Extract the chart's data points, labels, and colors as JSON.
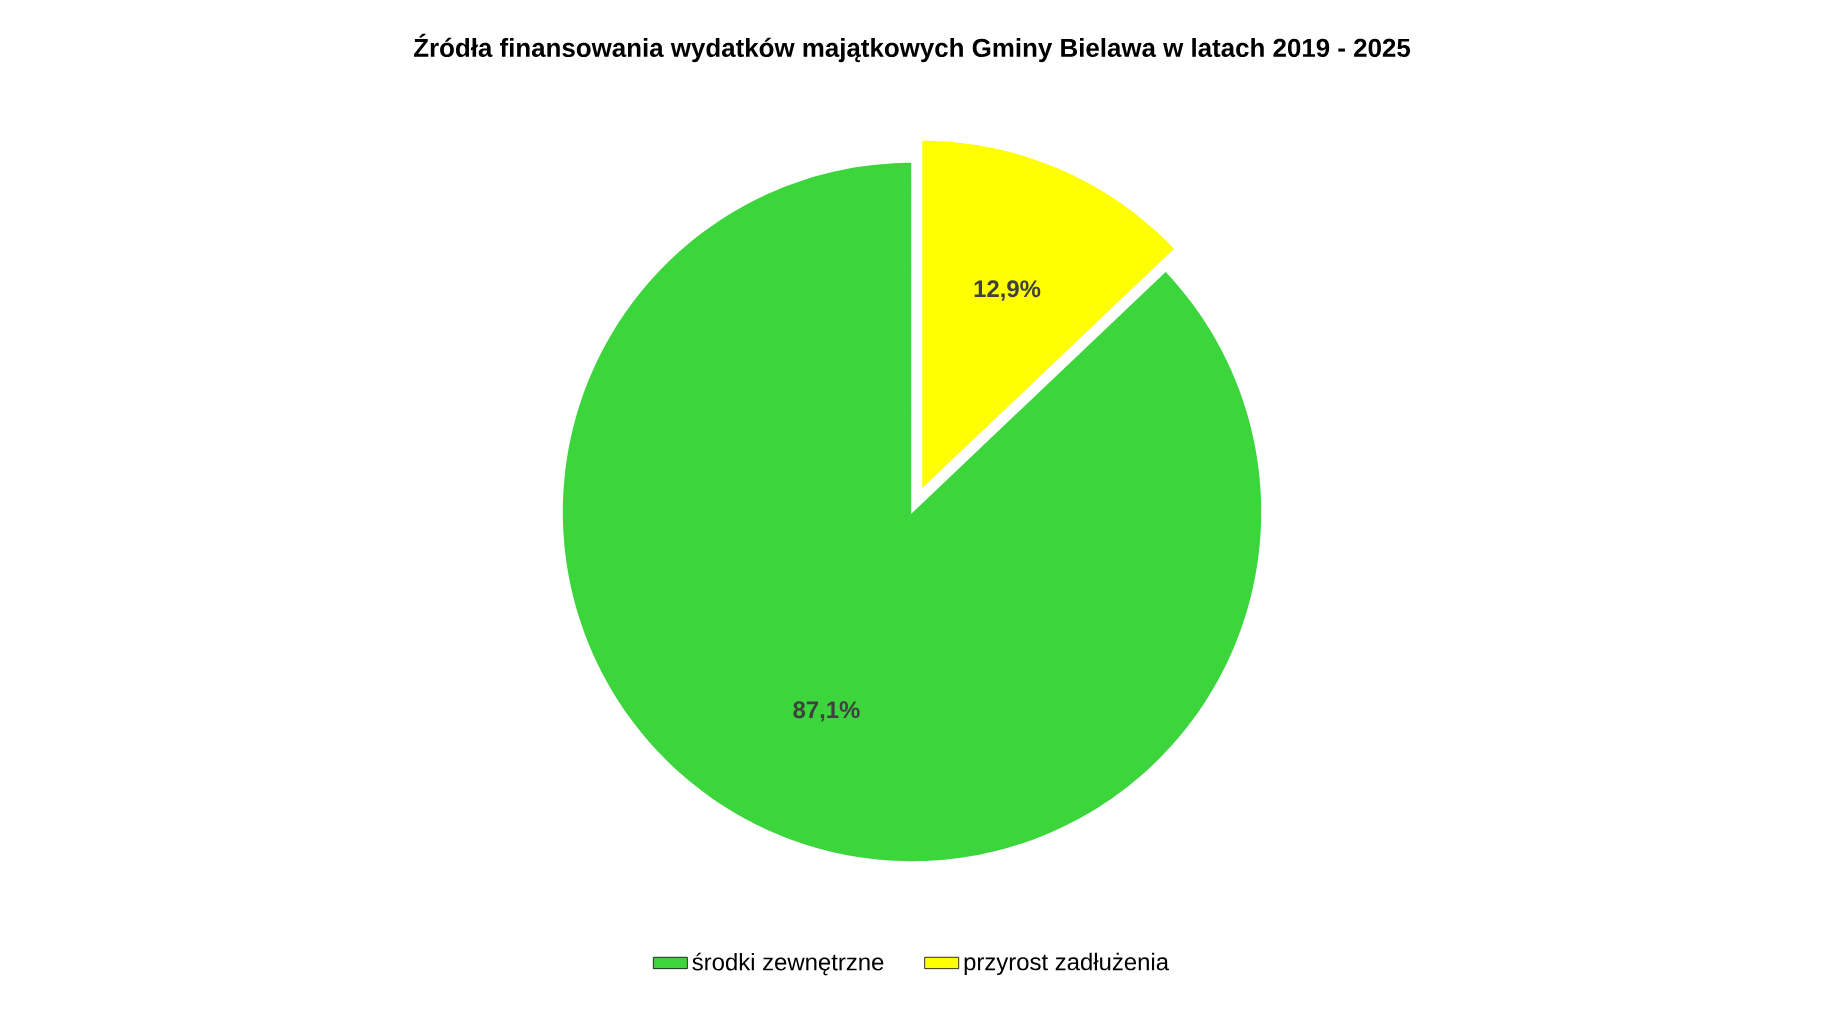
{
  "chart_data": {
    "type": "pie",
    "title": "Źródła finansowania wydatków majątkowych Gminy Bielawa w latach 2019 - 2025",
    "categories": [
      "środki zewnętrzne",
      "przyrost zadłużenia"
    ],
    "values": [
      87.1,
      12.9
    ],
    "colors": [
      "#3cd63c",
      "#ffff00"
    ],
    "value_labels": [
      "87,1%",
      "12,9%"
    ],
    "legend": "bottom"
  }
}
